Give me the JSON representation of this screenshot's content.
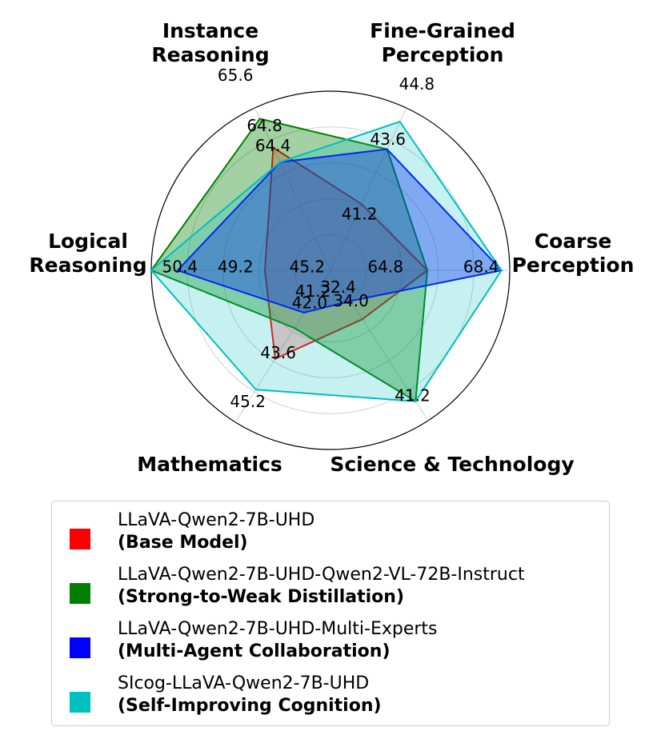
{
  "chart_data": {
    "type": "radar",
    "axes": [
      {
        "label": [
          "Instance",
          "Reasoning"
        ],
        "tick_labels": [
          "65.6",
          "64.8",
          "64.4"
        ]
      },
      {
        "label": [
          "Fine-Grained",
          "Perception"
        ],
        "tick_labels": [
          "44.8",
          "43.6",
          "41.2"
        ]
      },
      {
        "label": [
          "Coarse",
          "Perception"
        ],
        "tick_labels": [
          "68.4",
          "64.8"
        ]
      },
      {
        "label": [
          "Science & Technology"
        ],
        "tick_labels": [
          "41.2",
          "34.0",
          "32.4"
        ]
      },
      {
        "label": [
          "Mathematics"
        ],
        "tick_labels": [
          "45.2",
          "43.6",
          "42.0",
          "41.2"
        ]
      },
      {
        "label": [
          "Logical",
          "Reasoning"
        ],
        "tick_labels": [
          "50.4",
          "49.2",
          "45.2"
        ]
      }
    ],
    "series": [
      {
        "name": "LLaVA-Qwen2-7B-UHD",
        "sub": "(Base Model)",
        "color": "#ff0000",
        "values": [
          64.8,
          41.2,
          64.8,
          34.0,
          43.6,
          45.2
        ]
      },
      {
        "name": "LLaVA-Qwen2-7B-UHD-Qwen2-VL-72B-Instruct",
        "sub": "(Strong-to-Weak Distillation)",
        "color": "#008000",
        "values": [
          65.6,
          43.6,
          64.8,
          41.2,
          42.0,
          50.4
        ]
      },
      {
        "name": "LLaVA-Qwen2-7B-UHD-Multi-Experts",
        "sub": "(Multi-Agent Collaboration)",
        "color": "#0000ff",
        "values": [
          64.4,
          43.6,
          68.4,
          32.4,
          41.2,
          49.2
        ]
      },
      {
        "name": "SIcog-LLaVA-Qwen2-7B-UHD",
        "sub": "(Self-Improving Cognition)",
        "color": "#00bfbf",
        "values": [
          64.4,
          44.8,
          68.4,
          41.2,
          45.2,
          50.4
        ]
      }
    ],
    "legend_position": "bottom",
    "grid": true
  }
}
